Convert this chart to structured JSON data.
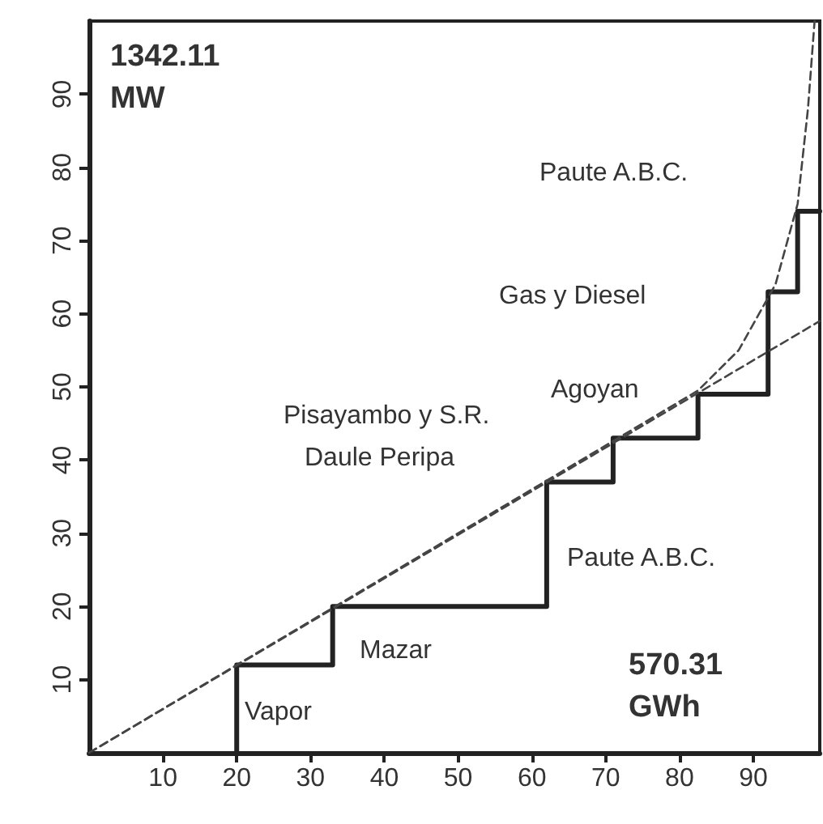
{
  "chart_data": {
    "type": "line",
    "xlim": [
      0,
      99
    ],
    "ylim": [
      0,
      100
    ],
    "xticks": [
      10,
      20,
      30,
      40,
      50,
      60,
      70,
      80,
      90
    ],
    "yticks": [
      10,
      20,
      30,
      40,
      50,
      60,
      70,
      80,
      90
    ],
    "marker": "none",
    "series": [
      {
        "color": "#222222",
        "line_style": "solid",
        "x": [
          20,
          20,
          33,
          33,
          62,
          62,
          71,
          71,
          82.5,
          82.5,
          92,
          92,
          96,
          96,
          99
        ],
        "values": [
          0,
          12,
          12,
          20,
          20,
          37,
          37,
          43,
          43,
          49,
          49,
          63,
          63,
          74,
          74
        ]
      },
      {
        "color": "#444444",
        "line_style": "dashed",
        "x": [
          0,
          99
        ],
        "values": [
          0,
          59
        ]
      },
      {
        "color": "#444444",
        "line_style": "dashed",
        "x": [
          0,
          75,
          82.5,
          88,
          93,
          96,
          97.4,
          98.3
        ],
        "values": [
          0,
          45,
          49.5,
          55,
          64,
          75,
          88,
          100
        ]
      }
    ],
    "annotations": [
      "1342.11\nMW",
      "570.31\nGWh",
      "Vapor",
      "Mazar",
      "Paute A.B.C.",
      "Daule Peripa",
      "Pisayambo y S.R.",
      "Agoyan",
      "Gas y Diesel",
      "Paute A.B.C."
    ]
  }
}
